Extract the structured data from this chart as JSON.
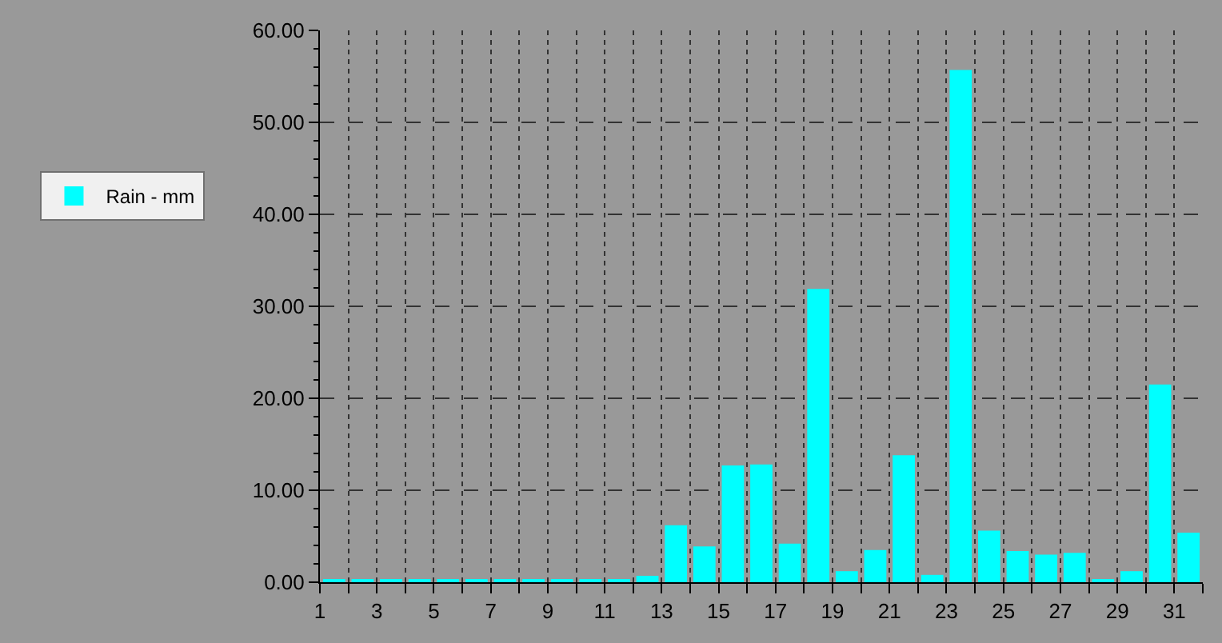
{
  "chart_data": {
    "type": "bar",
    "x": [
      1.5,
      2.5,
      3.5,
      4.5,
      5.5,
      6.5,
      7.5,
      8.5,
      9.5,
      10.5,
      11.5,
      12.5,
      13.5,
      14.5,
      15.5,
      16.5,
      17.5,
      18.5,
      19.5,
      20.5,
      21.5,
      22.5,
      23.5,
      24.5,
      25.5,
      26.5,
      27.5,
      28.5,
      29.5,
      30.5,
      31.5
    ],
    "series": [
      {
        "name": "Rain - mm",
        "color": "#00ffff",
        "values": [
          0.2,
          0.2,
          0.2,
          0.2,
          0.2,
          0.2,
          0.2,
          0.2,
          0.2,
          0.2,
          0.2,
          0.7,
          6.2,
          3.9,
          12.7,
          12.8,
          4.2,
          31.9,
          1.2,
          3.5,
          13.8,
          0.8,
          55.7,
          5.6,
          3.4,
          3.0,
          3.2,
          0.2,
          1.2,
          21.5,
          5.4
        ]
      }
    ],
    "xlim": [
      1,
      32
    ],
    "xticks": [
      1,
      {
        "value": 2,
        "label": null
      },
      3,
      {
        "value": 4,
        "label": null
      },
      5,
      {
        "value": 6,
        "label": null
      },
      7,
      {
        "value": 8,
        "label": null
      },
      9,
      {
        "value": 10,
        "label": null
      },
      11,
      {
        "value": 12,
        "label": null
      },
      13,
      {
        "value": 14,
        "label": null
      },
      15,
      {
        "value": 16,
        "label": null
      },
      17,
      {
        "value": 18,
        "label": null
      },
      19,
      {
        "value": 20,
        "label": null
      },
      21,
      {
        "value": 22,
        "label": null
      },
      23,
      {
        "value": 24,
        "label": null
      },
      25,
      {
        "value": 26,
        "label": null
      },
      27,
      {
        "value": 28,
        "label": null
      },
      29,
      {
        "value": 30,
        "label": null
      },
      31,
      {
        "value": 32,
        "label": null
      }
    ],
    "ylim": [
      0,
      60
    ],
    "yticks": [
      {
        "value": 0,
        "label": "0.00"
      },
      {
        "value": 10,
        "label": "10.00"
      },
      {
        "value": 20,
        "label": "20.00"
      },
      {
        "value": 30,
        "label": "30.00"
      },
      {
        "value": 40,
        "label": "40.00"
      },
      {
        "value": 50,
        "label": "50.00"
      },
      {
        "value": 60,
        "label": "60.00"
      }
    ],
    "grid": true,
    "legend": "left"
  }
}
